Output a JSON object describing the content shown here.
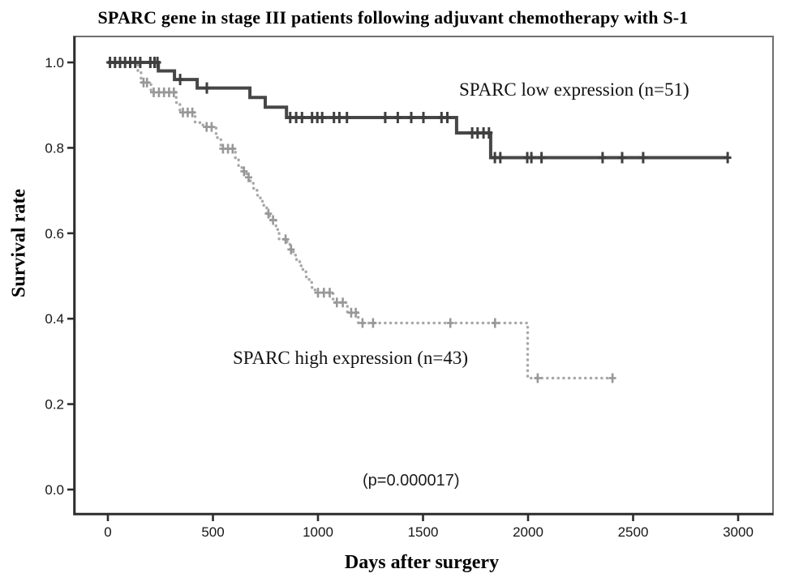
{
  "title": "SPARC gene in stage III patients following adjuvant chemotherapy with S-1",
  "labels": {
    "y_axis": "Survival rate",
    "x_axis": "Days after surgery",
    "series_low": "SPARC low expression (n=51)",
    "series_high": "SPARC high expression (n=43)",
    "p_value": "(p=0.000017)"
  },
  "chart_data": {
    "type": "line",
    "subtype": "kaplan_meier_step",
    "title": "SPARC gene in stage III patients following adjuvant chemotherapy with S-1",
    "xlabel": "Days after surgery",
    "ylabel": "Survival rate",
    "xlim": [
      0,
      3000
    ],
    "ylim": [
      0.0,
      1.0
    ],
    "x_ticks": [
      0,
      500,
      1000,
      1500,
      2000,
      2500,
      3000
    ],
    "y_ticks": [
      0.0,
      0.2,
      0.4,
      0.6,
      0.8,
      1.0
    ],
    "grid": false,
    "legend_position": "inline-annotations",
    "annotation": "(p=0.000017)",
    "series": [
      {
        "name": "SPARC low expression (n=51)",
        "key": "low",
        "n": 51,
        "color": "#474747",
        "censor_color": "#3f3f3f",
        "line_style": "solid",
        "steps": [
          [
            0,
            1.0
          ],
          [
            240,
            0.98
          ],
          [
            317,
            0.96
          ],
          [
            425,
            0.94
          ],
          [
            676,
            0.918
          ],
          [
            749,
            0.895
          ],
          [
            850,
            0.871
          ],
          [
            1660,
            0.835
          ],
          [
            1822,
            0.777
          ]
        ],
        "end_day": 2954,
        "final_survival": 0.777,
        "censor_marks": [
          [
            10,
            1.0
          ],
          [
            34,
            1.0
          ],
          [
            58,
            1.0
          ],
          [
            82,
            1.0
          ],
          [
            106,
            1.0
          ],
          [
            130,
            1.0
          ],
          [
            154,
            1.0
          ],
          [
            202,
            1.0
          ],
          [
            222,
            1.0
          ],
          [
            236,
            1.0
          ],
          [
            344,
            0.96
          ],
          [
            471,
            0.94
          ],
          [
            868,
            0.871
          ],
          [
            896,
            0.871
          ],
          [
            924,
            0.871
          ],
          [
            972,
            0.871
          ],
          [
            997,
            0.871
          ],
          [
            1020,
            0.871
          ],
          [
            1076,
            0.871
          ],
          [
            1102,
            0.871
          ],
          [
            1138,
            0.871
          ],
          [
            1320,
            0.871
          ],
          [
            1380,
            0.871
          ],
          [
            1444,
            0.871
          ],
          [
            1502,
            0.871
          ],
          [
            1588,
            0.871
          ],
          [
            1616,
            0.871
          ],
          [
            1734,
            0.835
          ],
          [
            1760,
            0.835
          ],
          [
            1788,
            0.835
          ],
          [
            1814,
            0.835
          ],
          [
            1842,
            0.777
          ],
          [
            1868,
            0.777
          ],
          [
            1996,
            0.777
          ],
          [
            2016,
            0.777
          ],
          [
            2064,
            0.777
          ],
          [
            2355,
            0.777
          ],
          [
            2448,
            0.777
          ],
          [
            2548,
            0.777
          ],
          [
            2950,
            0.777
          ]
        ]
      },
      {
        "name": "SPARC high expression (n=43)",
        "key": "high",
        "n": 43,
        "color": "#a9a9a9",
        "censor_color": "#989898",
        "line_style": "dotted",
        "steps": [
          [
            0,
            1.0
          ],
          [
            143,
            0.977
          ],
          [
            158,
            0.953
          ],
          [
            205,
            0.93
          ],
          [
            325,
            0.906
          ],
          [
            343,
            0.883
          ],
          [
            415,
            0.859
          ],
          [
            452,
            0.849
          ],
          [
            515,
            0.824
          ],
          [
            538,
            0.798
          ],
          [
            607,
            0.772
          ],
          [
            622,
            0.758
          ],
          [
            638,
            0.745
          ],
          [
            660,
            0.731
          ],
          [
            678,
            0.717
          ],
          [
            694,
            0.703
          ],
          [
            710,
            0.689
          ],
          [
            726,
            0.675
          ],
          [
            742,
            0.661
          ],
          [
            756,
            0.646
          ],
          [
            770,
            0.631
          ],
          [
            800,
            0.609
          ],
          [
            815,
            0.586
          ],
          [
            853,
            0.574
          ],
          [
            868,
            0.562
          ],
          [
            883,
            0.549
          ],
          [
            898,
            0.537
          ],
          [
            913,
            0.524
          ],
          [
            928,
            0.511
          ],
          [
            943,
            0.498
          ],
          [
            958,
            0.485
          ],
          [
            972,
            0.472
          ],
          [
            986,
            0.461
          ],
          [
            1072,
            0.438
          ],
          [
            1140,
            0.414
          ],
          [
            1192,
            0.39
          ],
          [
            1998,
            0.261
          ]
        ],
        "end_day": 2402,
        "final_survival": 0.261,
        "censor_marks": [
          [
            170,
            0.953
          ],
          [
            186,
            0.953
          ],
          [
            218,
            0.93
          ],
          [
            243,
            0.93
          ],
          [
            267,
            0.93
          ],
          [
            291,
            0.93
          ],
          [
            314,
            0.93
          ],
          [
            357,
            0.883
          ],
          [
            380,
            0.883
          ],
          [
            402,
            0.883
          ],
          [
            470,
            0.849
          ],
          [
            494,
            0.849
          ],
          [
            548,
            0.798
          ],
          [
            572,
            0.798
          ],
          [
            594,
            0.798
          ],
          [
            648,
            0.745
          ],
          [
            670,
            0.731
          ],
          [
            764,
            0.646
          ],
          [
            786,
            0.631
          ],
          [
            846,
            0.586
          ],
          [
            872,
            0.562
          ],
          [
            1000,
            0.461
          ],
          [
            1028,
            0.461
          ],
          [
            1056,
            0.461
          ],
          [
            1090,
            0.438
          ],
          [
            1118,
            0.438
          ],
          [
            1158,
            0.414
          ],
          [
            1180,
            0.414
          ],
          [
            1212,
            0.39
          ],
          [
            1262,
            0.39
          ],
          [
            1630,
            0.39
          ],
          [
            1843,
            0.39
          ],
          [
            2046,
            0.261
          ],
          [
            2402,
            0.261
          ]
        ]
      }
    ]
  }
}
